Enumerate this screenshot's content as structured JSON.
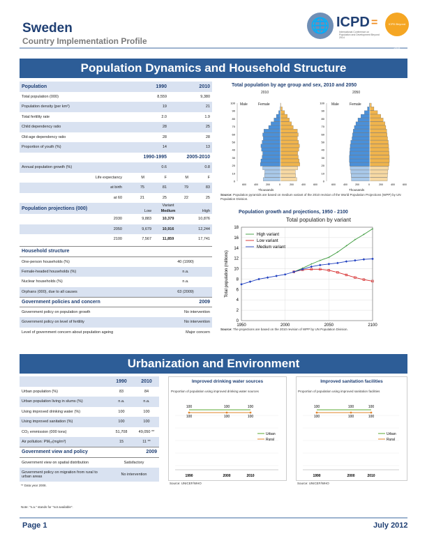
{
  "header": {
    "title": "Sweden",
    "subtitle": "Country Implementation Profile",
    "logo_text": "ICPD",
    "logo_eq": "=",
    "logo_fine": "International Conference on Population and Development Beyond 2014",
    "logo_badge": "ICPD Beyond 2014"
  },
  "section1": {
    "title": "Population Dynamics and Household Structure"
  },
  "population": {
    "label": "Population",
    "col1": "1990",
    "col2": "2010",
    "rows": [
      {
        "label": "Total population (000)",
        "v1": "8,559",
        "v2": "9,380"
      },
      {
        "label": "Population density (per km²)",
        "v1": "19",
        "v2": "21"
      },
      {
        "label": "Total fertility rate",
        "v1": "2.0",
        "v2": "1.9"
      },
      {
        "label": "Child dependency ratio",
        "v1": "28",
        "v2": "25"
      },
      {
        "label": "Old-age dependency ratio",
        "v1": "28",
        "v2": "28"
      },
      {
        "label": "Proportion of youth (%)",
        "v1": "14",
        "v2": "13"
      }
    ],
    "period1": "1990-1995",
    "period2": "2005-2010",
    "growth": {
      "label": "Annual population growth (%)",
      "v1": "0.6",
      "v2": "0.8"
    },
    "le_label": "Life expectancy",
    "m": "M",
    "f": "F",
    "le_rows": [
      {
        "label": "at birth",
        "m1": "75",
        "f1": "81",
        "m2": "79",
        "f2": "83"
      },
      {
        "label": "at 60",
        "m1": "21",
        "f1": "25",
        "m2": "22",
        "f2": "25"
      }
    ]
  },
  "projections": {
    "label": "Population projections (000)",
    "variant": "Variant",
    "low": "Low",
    "medium": "Medium",
    "high": "High",
    "rows": [
      {
        "year": "2030",
        "low": "9,883",
        "medium": "10,379",
        "high": "10,876"
      },
      {
        "year": "2050",
        "low": "9,679",
        "medium": "10,916",
        "high": "12,244"
      },
      {
        "year": "2100",
        "low": "7,567",
        "medium": "11,859",
        "high": "17,741"
      }
    ]
  },
  "household": {
    "label": "Household structure",
    "rows": [
      {
        "label": "One-person households (%)",
        "value": "40 (1990)"
      },
      {
        "label": "Female-headed households (%)",
        "value": "n.a."
      },
      {
        "label": "Nuclear households (%)",
        "value": "n.a."
      },
      {
        "label": "Orphans (000), due to all causes",
        "value": "63 (2009)"
      }
    ]
  },
  "policies": {
    "label": "Government policies and concern",
    "year": "2009",
    "rows": [
      {
        "label": "Government policy on population growth",
        "value": "No intervention"
      },
      {
        "label": "Government policy on level of fertility",
        "value": "No intervention"
      },
      {
        "label": "Level of government concern about population ageing",
        "value": "Major concern"
      }
    ]
  },
  "pyramid": {
    "title": "Total population by age group and sex, 2010 and 2050",
    "year1": "2010",
    "year2": "2050",
    "male": "Male",
    "female": "Female",
    "yticks": [
      "0",
      "10",
      "20",
      "30",
      "40",
      "50",
      "60",
      "70",
      "80",
      "90",
      "100"
    ],
    "xticks": [
      "600",
      "400",
      "200",
      "0",
      "200",
      "400",
      "600"
    ],
    "xunit": "Thousands",
    "source_label": "Source:",
    "source": "Population pyramids are based on medium variant of the 2010 revision of the World Population Projections (WPP) by UN Population Division."
  },
  "growth_chart": {
    "title": "Population growth and projections, 1950 - 2100",
    "inner_title": "Total population by variant",
    "source_label": "Source:",
    "source": "The projections are based on the 2010 revision of WPP by UN Population Division."
  },
  "chart_data": {
    "type": "line",
    "title": "Total population by variant",
    "ylabel": "Total population (millions)",
    "xlim": [
      1950,
      2100
    ],
    "ylim": [
      0,
      18
    ],
    "xticks": [
      "1950",
      "2000",
      "2050",
      "2100"
    ],
    "yticks": [
      "0",
      "2",
      "4",
      "6",
      "8",
      "10",
      "12",
      "14",
      "16",
      "18"
    ],
    "legend_position": "top-left",
    "series": [
      {
        "name": "High variant",
        "color": "#3a9a3a",
        "x": [
          2010,
          2020,
          2030,
          2040,
          2050,
          2060,
          2070,
          2080,
          2090,
          2100
        ],
        "values": [
          9.4,
          10.1,
          10.9,
          11.6,
          12.2,
          13.2,
          14.4,
          15.6,
          16.6,
          17.7
        ]
      },
      {
        "name": "Low variant",
        "color": "#d62728",
        "x": [
          2010,
          2020,
          2030,
          2040,
          2050,
          2060,
          2070,
          2080,
          2090,
          2100
        ],
        "values": [
          9.4,
          9.8,
          9.9,
          9.9,
          9.7,
          9.3,
          8.8,
          8.3,
          7.9,
          7.6
        ]
      },
      {
        "name": "Medium variant",
        "color": "#1f3fbf",
        "x": [
          1950,
          1960,
          1970,
          1980,
          1990,
          2000,
          2010,
          2020,
          2030,
          2040,
          2050,
          2060,
          2070,
          2080,
          2090,
          2100
        ],
        "values": [
          7.0,
          7.5,
          8.0,
          8.3,
          8.6,
          8.9,
          9.4,
          9.9,
          10.4,
          10.7,
          10.9,
          11.1,
          11.4,
          11.6,
          11.8,
          11.9
        ]
      }
    ]
  },
  "section2": {
    "title": "Urbanization and Environment"
  },
  "urban": {
    "col1": "1990",
    "col2": "2010",
    "rows": [
      {
        "label": "Urban population (%)",
        "v1": "83",
        "v2": "84"
      },
      {
        "label": "Urban population living in slums (%)",
        "v1": "n.a.",
        "v2": "n.a."
      },
      {
        "label": "Using improved drinking water (%)",
        "v1": "100",
        "v2": "100"
      },
      {
        "label": "Using improved sanitation (%)",
        "v1": "100",
        "v2": "100"
      },
      {
        "label": "CO₂ emmission (000 tons)",
        "v1": "51,708",
        "v2": "49,050 **"
      },
      {
        "label": "Air pollution: PM₁₀(mg/m³)",
        "v1": "15",
        "v2": "11 **"
      }
    ],
    "gov_label": "Government view and policy",
    "gov_year": "2009",
    "gov_rows": [
      {
        "label": "Government view on spatial distribution",
        "value": "Satisfactory"
      },
      {
        "label": "Government policy on migration from rural to urban areas",
        "value": "No intervention"
      }
    ],
    "footnote": "** Data year 2008."
  },
  "water_chart": {
    "title": "Improved drinking water sources",
    "subtitle": "Proportion of population using improved drinking water sources",
    "urban_label": "Urban",
    "rural_label": "Rural",
    "values": [
      "100",
      "100",
      "100",
      "100",
      "100",
      "100"
    ],
    "years": [
      "1990",
      "2000",
      "2010"
    ],
    "source": "Source: UNICEF/WHO"
  },
  "sanitation_chart": {
    "title": "Improved sanitation facilities",
    "subtitle": "Proportion of population using improved sanitation facilities",
    "urban_label": "Urban",
    "rural_label": "Rural",
    "values": [
      "100",
      "100",
      "100",
      "100",
      "100",
      "100"
    ],
    "years": [
      "1990",
      "2000",
      "2010"
    ],
    "source": "Source: UNICEF/WHO"
  },
  "note": "Note: \"n.a.\" stands for \"not available\".",
  "footer": {
    "page": "Page 1",
    "date": "July 2012"
  },
  "colors": {
    "banner": "#2d5d97",
    "male": "#4a90d9",
    "female": "#f0b44c",
    "alt_row": "#d9e2f1",
    "urban": "#5aa832",
    "rural": "#e0842a"
  }
}
